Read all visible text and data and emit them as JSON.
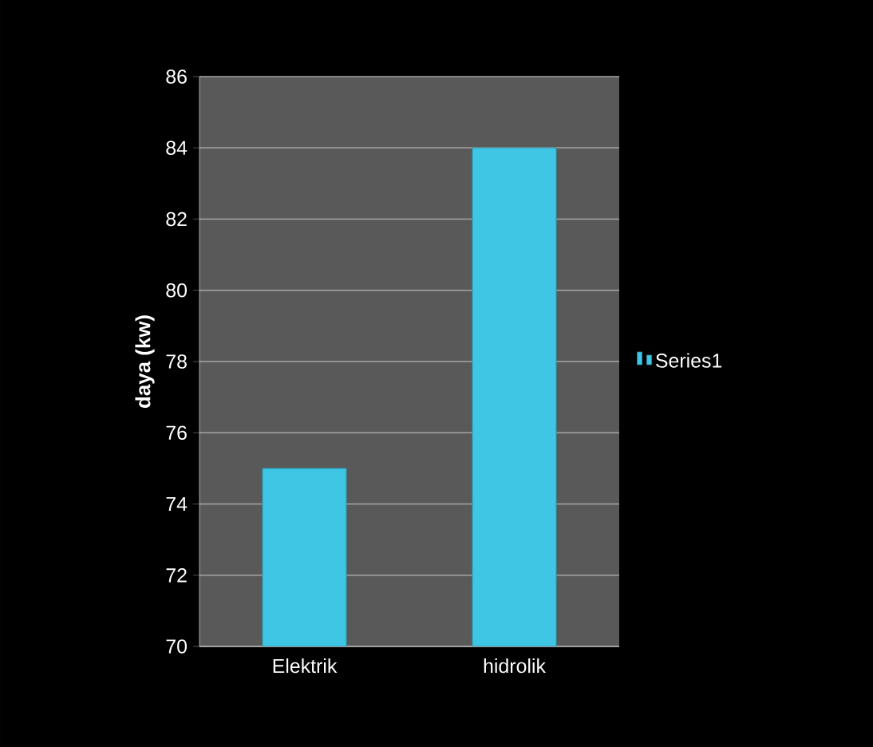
{
  "chart_data": {
    "type": "bar",
    "ylabel": "daya (kw)",
    "categories": [
      "Elektrik",
      "hidrolik"
    ],
    "series": [
      {
        "name": "Series1",
        "color": "#3ec6e4",
        "values": [
          75,
          84
        ]
      }
    ],
    "ylim": [
      70,
      86
    ],
    "yticks": [
      70,
      72,
      74,
      76,
      78,
      80,
      82,
      84,
      86
    ],
    "grid": "y",
    "legend": "right"
  }
}
